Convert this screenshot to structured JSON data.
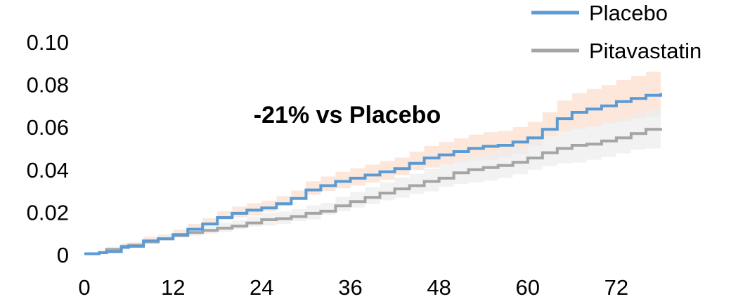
{
  "chart_data": {
    "type": "line",
    "title": "",
    "xlabel": "",
    "ylabel": "",
    "xlim": [
      0,
      78
    ],
    "ylim": [
      0,
      0.1
    ],
    "xticks": [
      0,
      12,
      24,
      36,
      48,
      60,
      72
    ],
    "xtick_labels": [
      "0",
      "12",
      "24",
      "36",
      "48",
      "60",
      "72"
    ],
    "yticks": [
      0,
      0.02,
      0.04,
      0.06,
      0.08,
      0.1
    ],
    "ytick_labels": [
      "0",
      "0.02",
      "0.04",
      "0.06",
      "0.08",
      "0.10"
    ],
    "grid": false,
    "legend_position": "top-right",
    "annotation": "-21% vs Placebo",
    "series": [
      {
        "name": "Placebo",
        "color": "#5b9bd5",
        "band_color": "#fbe3d3",
        "step": true,
        "x": [
          0,
          2,
          3,
          5,
          6,
          8,
          10,
          12,
          14,
          16,
          18,
          20,
          22,
          24,
          26,
          28,
          30,
          32,
          34,
          36,
          38,
          40,
          42,
          44,
          46,
          48,
          50,
          52,
          54,
          56,
          58,
          60,
          62,
          64,
          66,
          68,
          70,
          72,
          74,
          76,
          78
        ],
        "y": [
          0.0005,
          0.001,
          0.0015,
          0.0035,
          0.004,
          0.0065,
          0.0075,
          0.0095,
          0.012,
          0.0145,
          0.0175,
          0.0195,
          0.021,
          0.022,
          0.024,
          0.0265,
          0.0305,
          0.0325,
          0.0345,
          0.036,
          0.0375,
          0.039,
          0.0405,
          0.043,
          0.0455,
          0.047,
          0.0485,
          0.05,
          0.051,
          0.0515,
          0.053,
          0.055,
          0.059,
          0.064,
          0.067,
          0.0685,
          0.07,
          0.072,
          0.0735,
          0.075,
          0.076
        ],
        "lower": [
          0.0,
          0.0,
          0.0005,
          0.002,
          0.0025,
          0.0045,
          0.0055,
          0.0072,
          0.0095,
          0.0118,
          0.0145,
          0.0163,
          0.0177,
          0.0186,
          0.0204,
          0.0228,
          0.0264,
          0.0282,
          0.03,
          0.0313,
          0.0326,
          0.0339,
          0.0353,
          0.0375,
          0.0398,
          0.041,
          0.0423,
          0.0435,
          0.0443,
          0.0447,
          0.0459,
          0.0475,
          0.051,
          0.0555,
          0.058,
          0.059,
          0.0602,
          0.0618,
          0.0628,
          0.064,
          0.0648
        ],
        "upper": [
          0.001,
          0.002,
          0.0025,
          0.005,
          0.0055,
          0.0085,
          0.0095,
          0.0118,
          0.0145,
          0.0172,
          0.0205,
          0.0227,
          0.0243,
          0.0254,
          0.0276,
          0.0302,
          0.0346,
          0.0368,
          0.039,
          0.0407,
          0.0424,
          0.0441,
          0.0457,
          0.0485,
          0.0512,
          0.053,
          0.0547,
          0.0565,
          0.0577,
          0.0583,
          0.0601,
          0.0625,
          0.067,
          0.0725,
          0.076,
          0.078,
          0.0798,
          0.0822,
          0.0842,
          0.086,
          0.0875
        ]
      },
      {
        "name": "Pitavastatin",
        "color": "#a5a5a5",
        "band_color": "#eeeeee",
        "step": true,
        "x": [
          0,
          2,
          3,
          5,
          6,
          8,
          10,
          12,
          14,
          16,
          18,
          20,
          22,
          24,
          26,
          28,
          30,
          32,
          34,
          36,
          38,
          40,
          42,
          44,
          46,
          48,
          50,
          52,
          54,
          56,
          58,
          60,
          62,
          64,
          66,
          68,
          70,
          72,
          74,
          76,
          78
        ],
        "y": [
          0.0005,
          0.001,
          0.0025,
          0.004,
          0.0045,
          0.006,
          0.0075,
          0.009,
          0.0105,
          0.0115,
          0.0125,
          0.0135,
          0.015,
          0.0165,
          0.017,
          0.018,
          0.0195,
          0.0205,
          0.023,
          0.025,
          0.027,
          0.029,
          0.031,
          0.0325,
          0.0345,
          0.036,
          0.0385,
          0.04,
          0.041,
          0.042,
          0.0435,
          0.0455,
          0.048,
          0.05,
          0.0515,
          0.052,
          0.0535,
          0.055,
          0.057,
          0.059,
          0.0595
        ],
        "lower": [
          0.0,
          0.0,
          0.0012,
          0.0025,
          0.003,
          0.0043,
          0.0056,
          0.0069,
          0.0082,
          0.009,
          0.0098,
          0.0107,
          0.012,
          0.0133,
          0.0137,
          0.0145,
          0.0158,
          0.0166,
          0.0188,
          0.0205,
          0.0222,
          0.0239,
          0.0256,
          0.0269,
          0.0286,
          0.0298,
          0.032,
          0.0333,
          0.0341,
          0.0349,
          0.0362,
          0.0379,
          0.04,
          0.0417,
          0.043,
          0.0434,
          0.0447,
          0.046,
          0.0477,
          0.0494,
          0.05
        ],
        "upper": [
          0.001,
          0.002,
          0.0038,
          0.0055,
          0.006,
          0.0077,
          0.0094,
          0.0111,
          0.0128,
          0.014,
          0.0152,
          0.0163,
          0.018,
          0.0197,
          0.0203,
          0.0215,
          0.0232,
          0.0244,
          0.0272,
          0.0295,
          0.0318,
          0.0341,
          0.0364,
          0.0381,
          0.0404,
          0.0422,
          0.045,
          0.0467,
          0.0479,
          0.0491,
          0.0508,
          0.0531,
          0.056,
          0.0583,
          0.06,
          0.0606,
          0.0623,
          0.064,
          0.0663,
          0.0686,
          0.069
        ]
      }
    ]
  }
}
